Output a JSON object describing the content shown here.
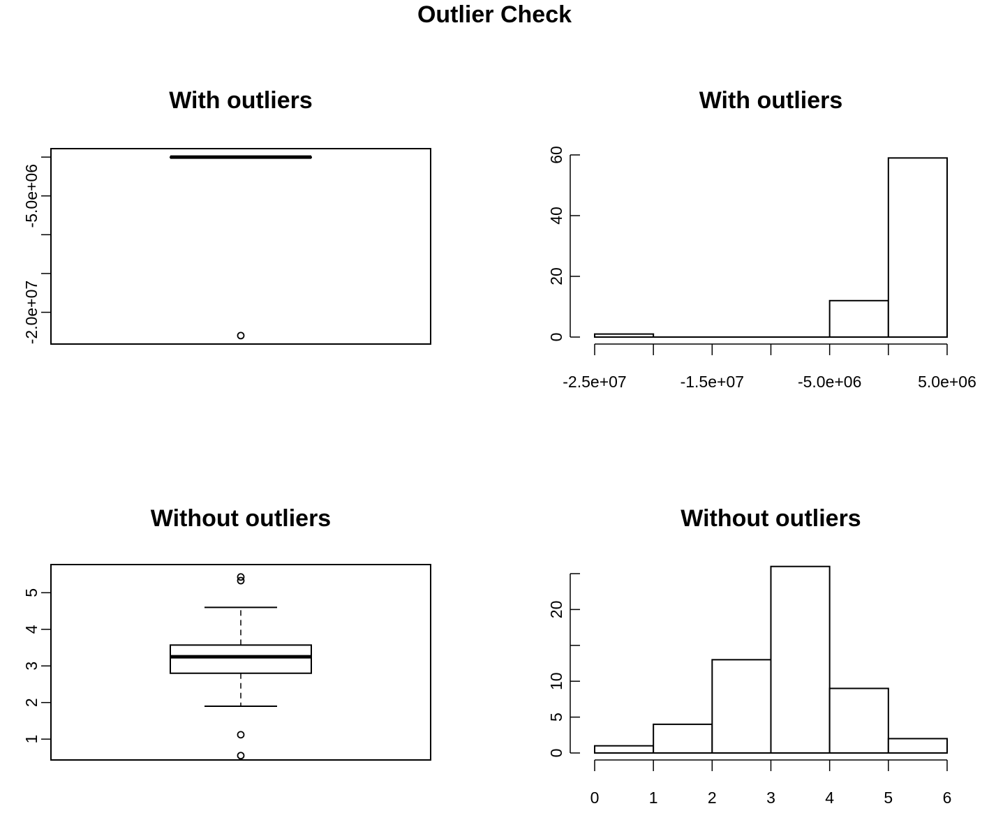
{
  "title": "Outlier Check",
  "chart_data": [
    {
      "type": "box",
      "title": "With outliers",
      "yticks": [
        -20000000,
        -5000000
      ],
      "ytick_labels": [
        "-2.0e+07",
        "-5.0e+06"
      ],
      "ylim": [
        -24000000,
        1000000
      ],
      "stats": {
        "min": 0.5,
        "q1": 2.8,
        "median": 3.25,
        "q3": 3.55,
        "max": 4.6
      },
      "outliers": [
        -23000000
      ]
    },
    {
      "type": "histogram",
      "title": "With outliers",
      "bins": [
        -25000000,
        -20000000,
        -15000000,
        -10000000,
        -5000000,
        0,
        5000000
      ],
      "counts": [
        1,
        0,
        0,
        0,
        12,
        59
      ],
      "xticks": [
        -25000000,
        -15000000,
        -5000000,
        5000000
      ],
      "xtick_labels": [
        "-2.5e+07",
        "-1.5e+07",
        "-5.0e+06",
        "5.0e+06"
      ],
      "yticks": [
        0,
        20,
        40,
        60
      ],
      "ytick_labels": [
        "0",
        "20",
        "40",
        "60"
      ],
      "ylim": [
        0,
        60
      ]
    },
    {
      "type": "box",
      "title": "Without outliers",
      "yticks": [
        1,
        2,
        3,
        4,
        5
      ],
      "ytick_labels": [
        "1",
        "2",
        "3",
        "4",
        "5"
      ],
      "ylim": [
        0.45,
        5.75
      ],
      "stats": {
        "min": 1.9,
        "q1": 2.8,
        "median": 3.25,
        "q3": 3.57,
        "max": 4.6
      },
      "outliers": [
        0.55,
        1.12,
        5.33,
        5.43
      ]
    },
    {
      "type": "histogram",
      "title": "Without outliers",
      "bins": [
        0,
        1,
        2,
        3,
        4,
        5,
        6
      ],
      "counts": [
        1,
        4,
        13,
        26,
        9,
        2
      ],
      "xticks": [
        0,
        1,
        2,
        3,
        4,
        5,
        6
      ],
      "xtick_labels": [
        "0",
        "1",
        "2",
        "3",
        "4",
        "5",
        "6"
      ],
      "yticks": [
        0,
        5,
        10,
        15,
        20,
        25
      ],
      "ytick_labels": [
        "0",
        "5",
        "10",
        "",
        "20",
        ""
      ],
      "ylim": [
        0,
        25
      ]
    }
  ]
}
